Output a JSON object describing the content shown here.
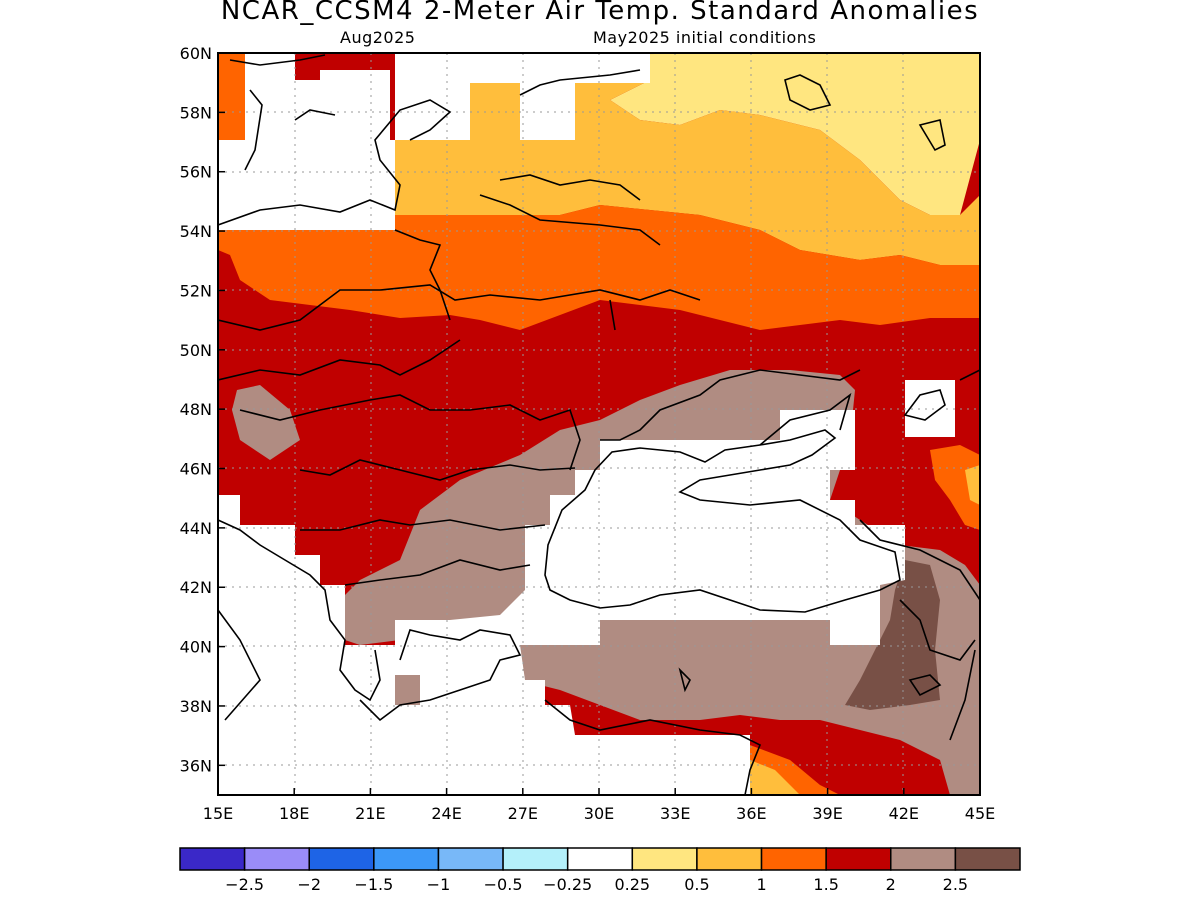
{
  "title": "NCAR_CCSM4 2-Meter Air Temp. Standard Anomalies",
  "subtitle_left": "Aug2025",
  "subtitle_right": "May2025 initial conditions",
  "map": {
    "lon_range": [
      15,
      45
    ],
    "lat_range": [
      35,
      60
    ],
    "lon_ticks": [
      "15E",
      "18E",
      "21E",
      "24E",
      "27E",
      "30E",
      "33E",
      "36E",
      "39E",
      "42E",
      "45E"
    ],
    "lat_ticks": [
      "36N",
      "38N",
      "40N",
      "42N",
      "44N",
      "46N",
      "48N",
      "50N",
      "52N",
      "54N",
      "56N",
      "58N",
      "60N"
    ],
    "grid": true,
    "regions": [
      {
        "category": "0.25-0.5",
        "area": "northeast Baltic / western Russia"
      },
      {
        "category": "0.5-1",
        "area": "Baltic states, Belarus north, central Russia"
      },
      {
        "category": "1-1.5",
        "area": "Poland, Belarus, southern Russia, eastern Turkey"
      },
      {
        "category": "1.5-2",
        "area": "central Europe, Ukraine, Balkans north"
      },
      {
        "category": "2-2.5",
        "area": "Balkans, Romania, Moldova, Turkey, Crimea, Caucasus"
      },
      {
        "category": ">2.5",
        "area": "eastern Turkey / Armenia"
      }
    ]
  },
  "colorbar": {
    "labels": [
      "-2.5",
      "-2",
      "-1.5",
      "-1",
      "-0.5",
      "-0.25",
      "0.25",
      "0.5",
      "1",
      "1.5",
      "2",
      "2.5"
    ],
    "colors": [
      "#3a28c8",
      "#9a8cf8",
      "#1e64e6",
      "#3c98f8",
      "#78b8f8",
      "#b4f0fa",
      "#ffffff",
      "#ffe680",
      "#ffbe3c",
      "#ff6400",
      "#c00000",
      "#b08c82",
      "#785046"
    ]
  }
}
